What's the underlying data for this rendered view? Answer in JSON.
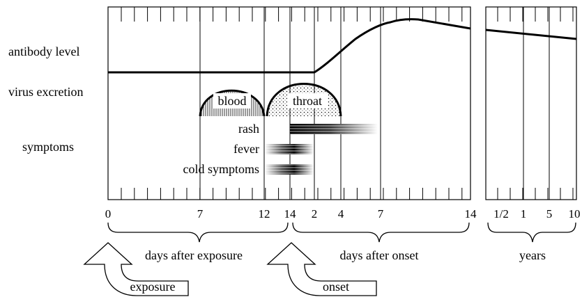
{
  "row_labels": {
    "antibody": "antibody level",
    "virus": "virus excretion",
    "symptoms": "symptoms"
  },
  "virus_phases": [
    "blood",
    "throat"
  ],
  "symptom_labels": [
    "rash",
    "fever",
    "cold symptoms"
  ],
  "ticks_main": [
    "0",
    "7",
    "12",
    "14",
    "2",
    "4",
    "7",
    "14"
  ],
  "ticks_years": [
    "1/2",
    "1",
    "5",
    "10"
  ],
  "axis_groups": {
    "exposure_days": "days after exposure",
    "onset_days": "days after onset",
    "years": "years"
  },
  "callouts": {
    "exposure": "exposure",
    "onset": "onset"
  },
  "colors": {
    "ink": "#000000",
    "background": "#ffffff"
  }
}
